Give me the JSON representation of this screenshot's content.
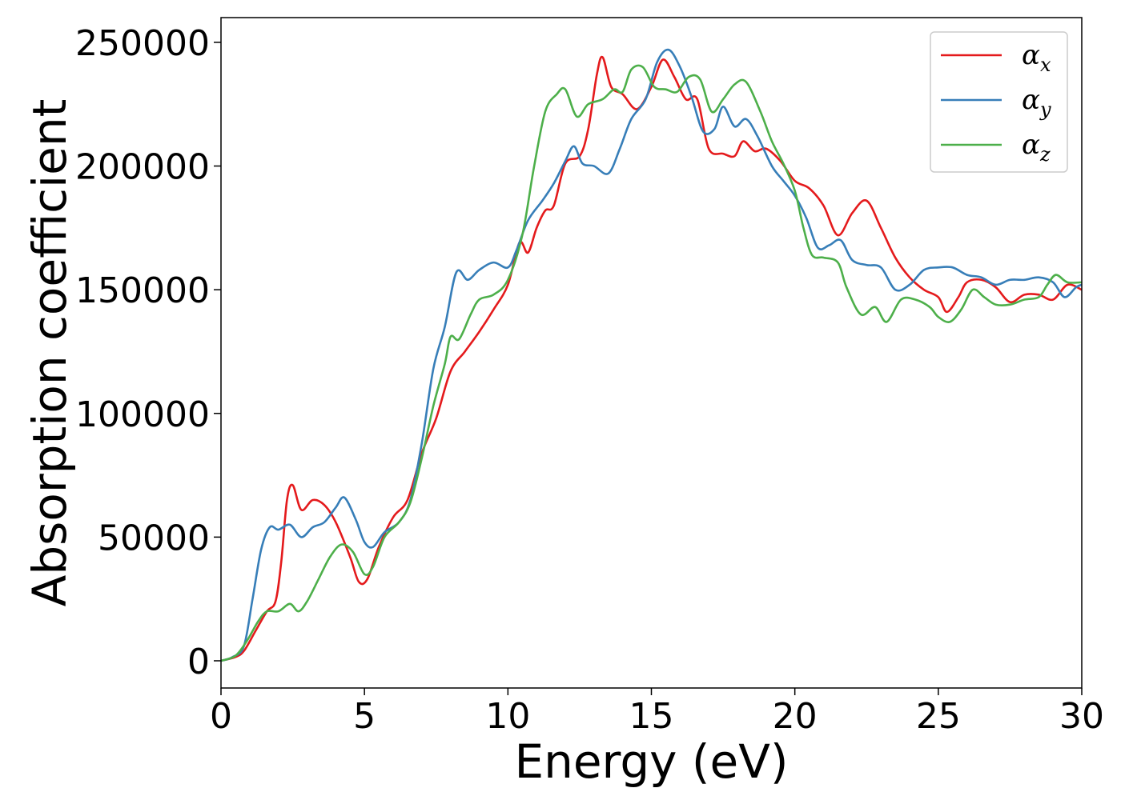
{
  "chart_data": {
    "type": "line",
    "title": "",
    "xlabel": "Energy (eV)",
    "ylabel": "Absorption coefficient",
    "xlim": [
      0,
      30
    ],
    "ylim": [
      -11000,
      260000
    ],
    "xticks": [
      0,
      5,
      10,
      15,
      20,
      25,
      30
    ],
    "yticks": [
      0,
      50000,
      100000,
      150000,
      200000,
      250000
    ],
    "xtick_labels": [
      "0",
      "5",
      "10",
      "15",
      "20",
      "25",
      "30"
    ],
    "ytick_labels": [
      "0",
      "50000",
      "100000",
      "150000",
      "200000",
      "250000"
    ],
    "grid": false,
    "legend_position": "top-right",
    "series": [
      {
        "name": "αx",
        "legend_base": "α",
        "legend_sub": "x",
        "color": "#e41a1c",
        "points": [
          [
            0,
            0
          ],
          [
            0.5,
            1500
          ],
          [
            0.8,
            4000
          ],
          [
            1.2,
            12000
          ],
          [
            1.6,
            20000
          ],
          [
            1.9,
            24000
          ],
          [
            2.1,
            40000
          ],
          [
            2.3,
            65000
          ],
          [
            2.5,
            71000
          ],
          [
            2.8,
            61000
          ],
          [
            3.2,
            65000
          ],
          [
            3.6,
            63000
          ],
          [
            4.0,
            56000
          ],
          [
            4.5,
            42000
          ],
          [
            4.8,
            32000
          ],
          [
            5.1,
            33000
          ],
          [
            5.5,
            46000
          ],
          [
            6.0,
            58000
          ],
          [
            6.5,
            65000
          ],
          [
            7.0,
            84000
          ],
          [
            7.5,
            98000
          ],
          [
            8.0,
            117000
          ],
          [
            8.5,
            125000
          ],
          [
            9.0,
            133000
          ],
          [
            9.5,
            142000
          ],
          [
            10.0,
            152000
          ],
          [
            10.4,
            169000
          ],
          [
            10.7,
            165000
          ],
          [
            11.0,
            175000
          ],
          [
            11.3,
            182000
          ],
          [
            11.6,
            184000
          ],
          [
            12.0,
            201000
          ],
          [
            12.5,
            204000
          ],
          [
            12.8,
            215000
          ],
          [
            13.1,
            237000
          ],
          [
            13.3,
            244000
          ],
          [
            13.6,
            232000
          ],
          [
            14.0,
            229000
          ],
          [
            14.5,
            223000
          ],
          [
            15.0,
            232000
          ],
          [
            15.4,
            243000
          ],
          [
            15.8,
            236000
          ],
          [
            16.2,
            227000
          ],
          [
            16.6,
            227000
          ],
          [
            17.0,
            207000
          ],
          [
            17.5,
            205000
          ],
          [
            17.9,
            204000
          ],
          [
            18.2,
            210000
          ],
          [
            18.6,
            206000
          ],
          [
            19.0,
            207000
          ],
          [
            19.5,
            202000
          ],
          [
            20.0,
            194000
          ],
          [
            20.5,
            191000
          ],
          [
            21.0,
            184000
          ],
          [
            21.5,
            172000
          ],
          [
            22.0,
            181000
          ],
          [
            22.5,
            186000
          ],
          [
            23.0,
            175000
          ],
          [
            23.5,
            163000
          ],
          [
            24.0,
            155000
          ],
          [
            24.5,
            150000
          ],
          [
            25.0,
            147000
          ],
          [
            25.3,
            141000
          ],
          [
            25.7,
            147000
          ],
          [
            26.0,
            153000
          ],
          [
            26.5,
            154000
          ],
          [
            27.0,
            151000
          ],
          [
            27.5,
            145000
          ],
          [
            28.0,
            148000
          ],
          [
            28.5,
            148000
          ],
          [
            29.0,
            146000
          ],
          [
            29.5,
            152000
          ],
          [
            30.0,
            150000
          ]
        ]
      },
      {
        "name": "αy",
        "legend_base": "α",
        "legend_sub": "y",
        "color": "#377eb8",
        "points": [
          [
            0,
            0
          ],
          [
            0.4,
            1500
          ],
          [
            0.8,
            6000
          ],
          [
            1.1,
            25000
          ],
          [
            1.4,
            45000
          ],
          [
            1.7,
            54000
          ],
          [
            2.0,
            53000
          ],
          [
            2.4,
            55000
          ],
          [
            2.8,
            50000
          ],
          [
            3.2,
            54000
          ],
          [
            3.6,
            56000
          ],
          [
            4.0,
            62000
          ],
          [
            4.3,
            66000
          ],
          [
            4.7,
            57000
          ],
          [
            5.0,
            48000
          ],
          [
            5.3,
            46000
          ],
          [
            5.7,
            52000
          ],
          [
            6.2,
            56000
          ],
          [
            6.6,
            65000
          ],
          [
            7.0,
            88000
          ],
          [
            7.4,
            118000
          ],
          [
            7.8,
            135000
          ],
          [
            8.2,
            157000
          ],
          [
            8.6,
            154000
          ],
          [
            9.0,
            158000
          ],
          [
            9.5,
            161000
          ],
          [
            10.0,
            159000
          ],
          [
            10.3,
            166000
          ],
          [
            10.7,
            178000
          ],
          [
            11.2,
            186000
          ],
          [
            11.6,
            193000
          ],
          [
            12.0,
            202000
          ],
          [
            12.3,
            208000
          ],
          [
            12.6,
            201000
          ],
          [
            13.0,
            200000
          ],
          [
            13.5,
            197000
          ],
          [
            13.9,
            207000
          ],
          [
            14.3,
            219000
          ],
          [
            14.8,
            227000
          ],
          [
            15.2,
            242000
          ],
          [
            15.6,
            247000
          ],
          [
            16.0,
            240000
          ],
          [
            16.4,
            228000
          ],
          [
            16.8,
            214000
          ],
          [
            17.2,
            215000
          ],
          [
            17.5,
            224000
          ],
          [
            17.9,
            216000
          ],
          [
            18.3,
            219000
          ],
          [
            18.7,
            212000
          ],
          [
            19.2,
            200000
          ],
          [
            19.6,
            194000
          ],
          [
            20.0,
            188000
          ],
          [
            20.4,
            179000
          ],
          [
            20.8,
            167000
          ],
          [
            21.2,
            168000
          ],
          [
            21.6,
            170000
          ],
          [
            22.0,
            162000
          ],
          [
            22.5,
            160000
          ],
          [
            23.0,
            159000
          ],
          [
            23.5,
            150000
          ],
          [
            24.0,
            152000
          ],
          [
            24.5,
            158000
          ],
          [
            25.0,
            159000
          ],
          [
            25.5,
            159000
          ],
          [
            26.0,
            156000
          ],
          [
            26.5,
            155000
          ],
          [
            27.0,
            152000
          ],
          [
            27.5,
            154000
          ],
          [
            28.0,
            154000
          ],
          [
            28.5,
            155000
          ],
          [
            29.0,
            153000
          ],
          [
            29.4,
            147000
          ],
          [
            29.8,
            151000
          ],
          [
            30.0,
            152000
          ]
        ]
      },
      {
        "name": "αz",
        "legend_base": "α",
        "legend_sub": "z",
        "color": "#4daf4a",
        "points": [
          [
            0,
            0
          ],
          [
            0.5,
            2000
          ],
          [
            0.9,
            8000
          ],
          [
            1.3,
            16000
          ],
          [
            1.6,
            20000
          ],
          [
            2.0,
            20000
          ],
          [
            2.4,
            23000
          ],
          [
            2.7,
            20000
          ],
          [
            3.0,
            24000
          ],
          [
            3.4,
            33000
          ],
          [
            3.8,
            42000
          ],
          [
            4.2,
            47000
          ],
          [
            4.6,
            44000
          ],
          [
            5.0,
            35000
          ],
          [
            5.3,
            38000
          ],
          [
            5.7,
            50000
          ],
          [
            6.2,
            56000
          ],
          [
            6.6,
            64000
          ],
          [
            7.0,
            82000
          ],
          [
            7.4,
            103000
          ],
          [
            7.8,
            120000
          ],
          [
            8.0,
            131000
          ],
          [
            8.3,
            130000
          ],
          [
            8.7,
            140000
          ],
          [
            9.0,
            146000
          ],
          [
            9.5,
            148000
          ],
          [
            10.0,
            154000
          ],
          [
            10.5,
            172000
          ],
          [
            10.9,
            199000
          ],
          [
            11.3,
            222000
          ],
          [
            11.7,
            229000
          ],
          [
            12.0,
            231000
          ],
          [
            12.4,
            220000
          ],
          [
            12.8,
            225000
          ],
          [
            13.3,
            227000
          ],
          [
            13.7,
            231000
          ],
          [
            14.0,
            230000
          ],
          [
            14.3,
            239000
          ],
          [
            14.7,
            240000
          ],
          [
            15.1,
            232000
          ],
          [
            15.5,
            231000
          ],
          [
            15.9,
            230000
          ],
          [
            16.3,
            236000
          ],
          [
            16.7,
            235000
          ],
          [
            17.1,
            222000
          ],
          [
            17.5,
            227000
          ],
          [
            17.9,
            233000
          ],
          [
            18.3,
            234000
          ],
          [
            18.8,
            222000
          ],
          [
            19.2,
            210000
          ],
          [
            19.6,
            201000
          ],
          [
            20.0,
            190000
          ],
          [
            20.3,
            175000
          ],
          [
            20.6,
            164000
          ],
          [
            21.0,
            163000
          ],
          [
            21.5,
            161000
          ],
          [
            21.8,
            151000
          ],
          [
            22.3,
            140000
          ],
          [
            22.8,
            143000
          ],
          [
            23.2,
            137000
          ],
          [
            23.7,
            146000
          ],
          [
            24.2,
            146000
          ],
          [
            24.7,
            143000
          ],
          [
            25.0,
            139000
          ],
          [
            25.4,
            137000
          ],
          [
            25.8,
            142000
          ],
          [
            26.2,
            150000
          ],
          [
            26.6,
            147000
          ],
          [
            27.0,
            144000
          ],
          [
            27.5,
            144000
          ],
          [
            28.0,
            146000
          ],
          [
            28.5,
            147000
          ],
          [
            28.8,
            152000
          ],
          [
            29.1,
            156000
          ],
          [
            29.5,
            153000
          ],
          [
            30.0,
            153000
          ]
        ]
      }
    ]
  }
}
